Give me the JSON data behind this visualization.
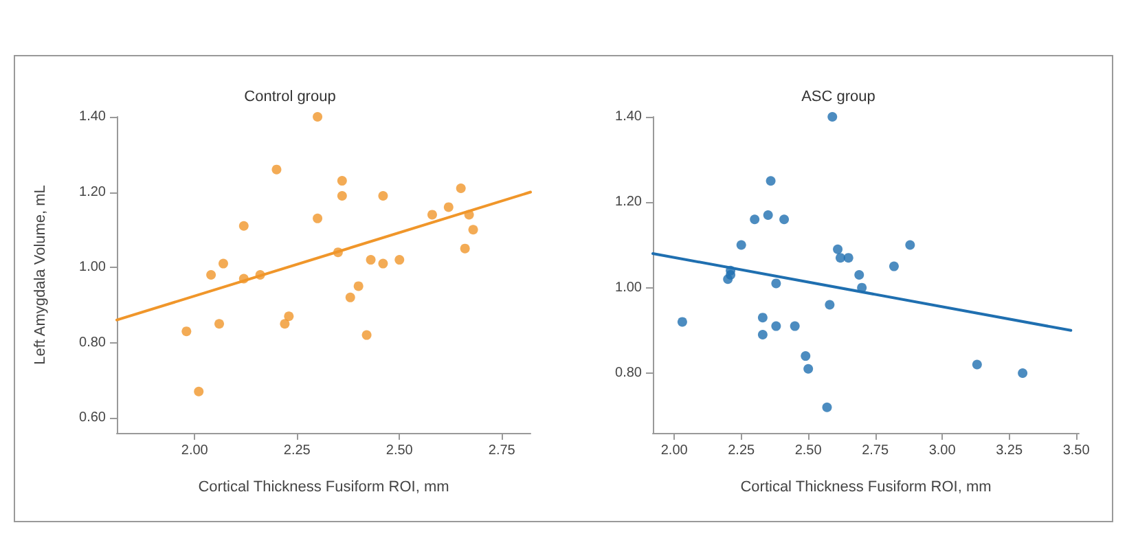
{
  "chart_data": [
    {
      "type": "scatter",
      "title": "Control group",
      "xlabel": "Cortical Thickness Fusiform ROI, mm",
      "ylabel": "Left Amygdala Volume, mL",
      "xlim": [
        1.81,
        2.82
      ],
      "ylim": [
        0.56,
        1.4
      ],
      "xticks": [
        {
          "value": 2,
          "label": "2.00"
        },
        {
          "value": 2.25,
          "label": "2.25"
        },
        {
          "value": 2.5,
          "label": "2.50"
        },
        {
          "value": 2.75,
          "label": "2.75"
        }
      ],
      "yticks": [
        {
          "value": 0.6,
          "label": "0.60"
        },
        {
          "value": 0.8,
          "label": "0.80"
        },
        {
          "value": 1,
          "label": "1.00"
        },
        {
          "value": 1.2,
          "label": "1.20"
        },
        {
          "value": 1.4,
          "label": "1.40"
        }
      ],
      "grid": false,
      "marker": "circle",
      "series": [
        {
          "color": "#f0962a",
          "x": [
            1.98,
            2.01,
            2.04,
            2.06,
            2.07,
            2.12,
            2.12,
            2.16,
            2.2,
            2.22,
            2.23,
            2.3,
            2.3,
            2.35,
            2.36,
            2.36,
            2.38,
            2.4,
            2.42,
            2.43,
            2.46,
            2.46,
            2.5,
            2.58,
            2.62,
            2.65,
            2.66,
            2.67,
            2.68
          ],
          "values": [
            0.83,
            0.67,
            0.98,
            0.85,
            1.01,
            0.97,
            1.11,
            0.98,
            1.26,
            0.85,
            0.87,
            1.4,
            1.13,
            1.04,
            1.19,
            1.23,
            0.92,
            0.95,
            0.82,
            1.02,
            1.19,
            1.01,
            1.02,
            1.14,
            1.16,
            1.21,
            1.05,
            1.14,
            1.1
          ]
        },
        {
          "type": "line",
          "color": "#f0962a",
          "line_style": "solid",
          "marker": "none",
          "x": [
            1.81,
            2.82
          ],
          "values": [
            0.86,
            1.2
          ]
        }
      ]
    },
    {
      "type": "scatter",
      "title": "ASC group",
      "xlabel": "Cortical Thickness Fusiform ROI, mm",
      "xlim": [
        1.92,
        3.51
      ],
      "ylim": [
        0.66,
        1.4
      ],
      "xticks": [
        {
          "value": 2,
          "label": "2.00"
        },
        {
          "value": 2.25,
          "label": "2.25"
        },
        {
          "value": 2.5,
          "label": "2.50"
        },
        {
          "value": 2.75,
          "label": "2.75"
        },
        {
          "value": 3,
          "label": "3.00"
        },
        {
          "value": 3.25,
          "label": "3.25"
        },
        {
          "value": 3.5,
          "label": "3.50"
        }
      ],
      "yticks": [
        {
          "value": 0.8,
          "label": "0.80"
        },
        {
          "value": 1,
          "label": "1.00"
        },
        {
          "value": 1.2,
          "label": "1.20"
        },
        {
          "value": 1.4,
          "label": "1.40"
        }
      ],
      "grid": false,
      "marker": "circle",
      "series": [
        {
          "color": "#1f6fb0",
          "x": [
            2.03,
            2.2,
            2.21,
            2.21,
            2.25,
            2.3,
            2.33,
            2.33,
            2.35,
            2.36,
            2.38,
            2.38,
            2.41,
            2.45,
            2.49,
            2.5,
            2.57,
            2.58,
            2.59,
            2.61,
            2.62,
            2.65,
            2.69,
            2.7,
            2.82,
            2.88,
            3.13,
            3.3
          ],
          "values": [
            0.92,
            1.02,
            1.03,
            1.04,
            1.1,
            1.16,
            0.93,
            0.89,
            1.17,
            1.25,
            1.01,
            0.91,
            1.16,
            0.91,
            0.84,
            0.81,
            0.72,
            0.96,
            1.4,
            1.09,
            1.07,
            1.07,
            1.03,
            1.0,
            1.05,
            1.1,
            0.82,
            0.8
          ]
        },
        {
          "type": "line",
          "color": "#1f6fb0",
          "line_style": "solid",
          "marker": "none",
          "x": [
            1.92,
            3.48
          ],
          "values": [
            1.08,
            0.9
          ]
        }
      ]
    }
  ]
}
